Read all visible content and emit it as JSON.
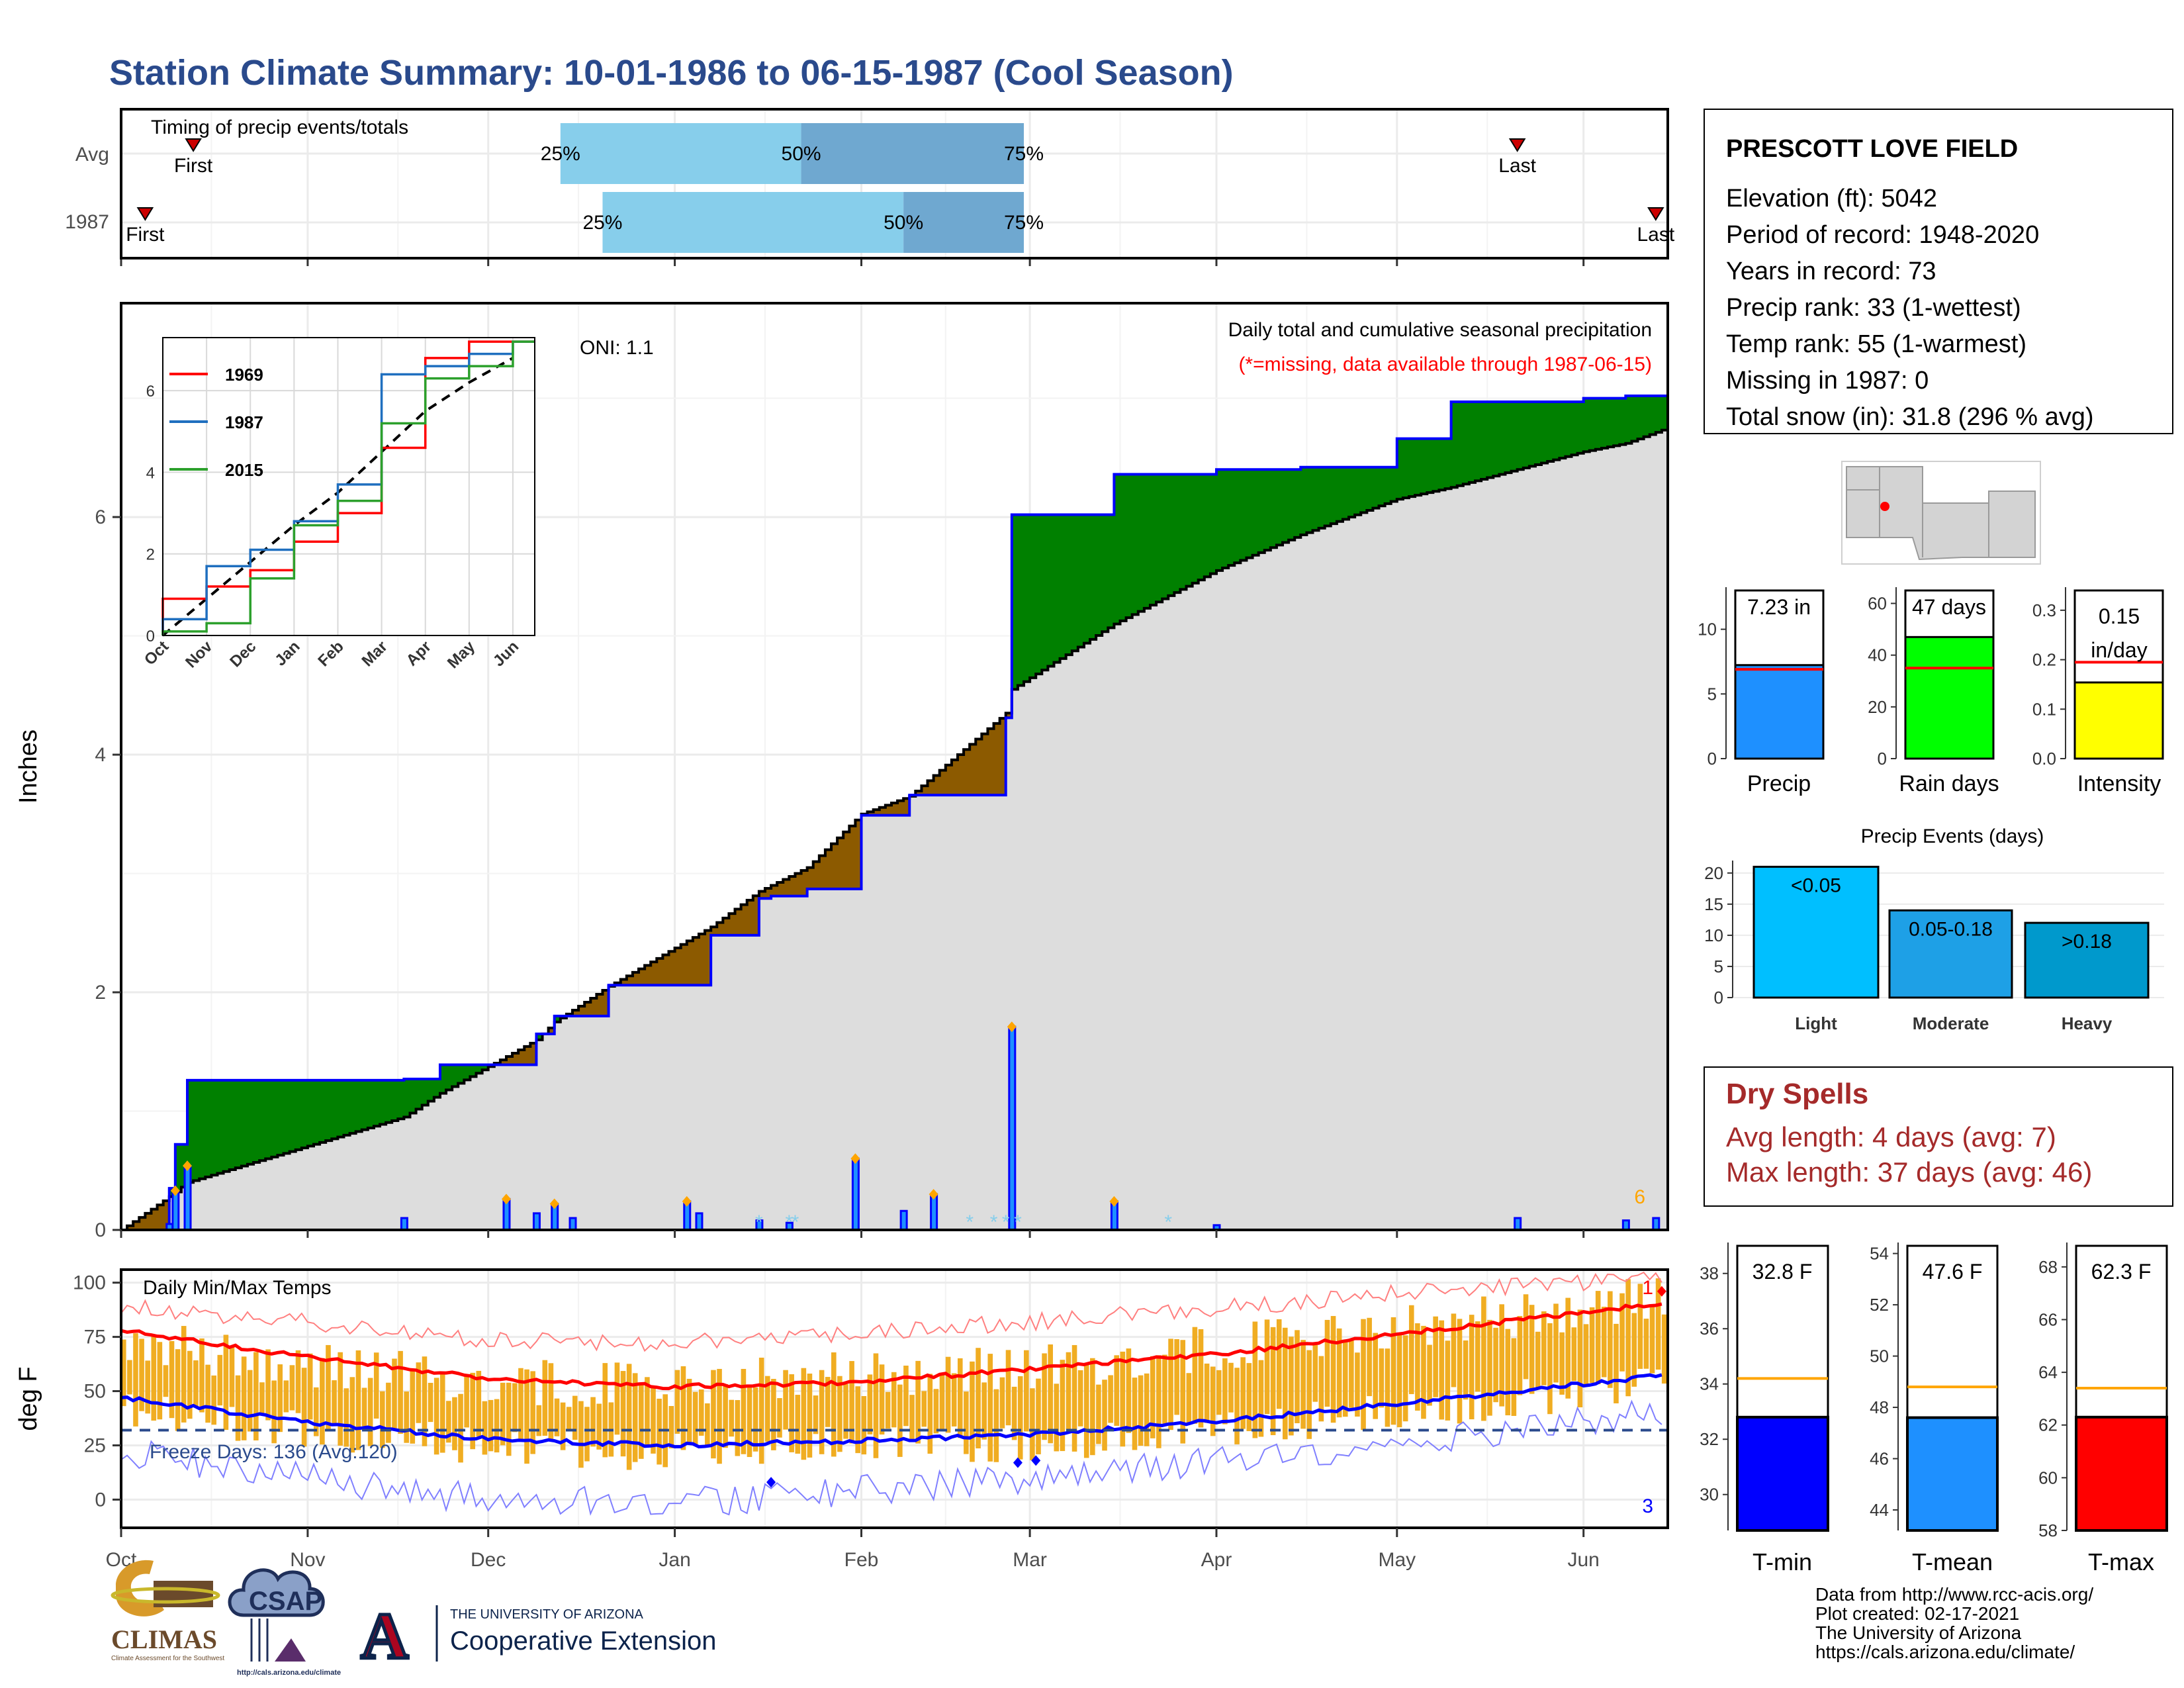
{
  "title": "Station Climate Summary: 10-01-1986 to 06-15-1987 (Cool Season)",
  "colors": {
    "title": "#2a4a8c",
    "green": "#008000",
    "brown": "#8c5a00",
    "gray": "#dddddd",
    "blue": "#0000ff",
    "lightblue": "#87ceeb",
    "midblue": "#6fa8d0",
    "orange": "#ffa500",
    "red": "#ff0000",
    "gold": "#f0ad22",
    "precip_bar": "#1e90ff",
    "raindays_bar": "#00ff00",
    "intensity_bar": "#ffff00",
    "light": "#00bfff",
    "moderate": "#1ea0e6",
    "heavy": "#0099cc",
    "tmin": "#0000ff",
    "tmean": "#1e90ff",
    "tmax": "#ff0000",
    "dry": "#a52a2a"
  },
  "timing_panel": {
    "label": "Timing of precip events/totals",
    "rows": [
      {
        "name": "Avg",
        "first_label": "First",
        "last_label": "Last",
        "first_date": "1986-10-13",
        "last_date": "1987-05-21",
        "p25_label": "25%",
        "p50_label": "50%",
        "p75_label": "75%",
        "p25_date": "1986-12-13",
        "p50_date": "1987-01-22",
        "p75_date": "1987-02-28"
      },
      {
        "name": "1987",
        "first_label": "First",
        "last_label": "Last",
        "first_date": "1986-10-05",
        "last_date": "1987-06-13",
        "p25_label": "25%",
        "p50_label": "50%",
        "p75_label": "75%",
        "p25_date": "1986-12-20",
        "p50_date": "1987-02-08",
        "p75_date": "1987-02-28"
      }
    ]
  },
  "precip_panel": {
    "y_label": "Inches",
    "caption": "Daily total and cumulative seasonal precipitation",
    "missing_note": "(*=missing, data available through 1987-06-15)",
    "oni": "ONI: 1.1",
    "corner_count": "6",
    "y_ticks": [
      "0",
      "2",
      "4",
      "6"
    ],
    "ylim": [
      0,
      7.8
    ]
  },
  "inset": {
    "legend": [
      "1969",
      "1987",
      "2015"
    ],
    "legend_colors": [
      "#ff0000",
      "#1f6fbf",
      "#2ca02c"
    ],
    "x_ticks": [
      "Oct",
      "Nov",
      "Dec",
      "Jan",
      "Feb",
      "Mar",
      "Apr",
      "May",
      "Jun"
    ],
    "y_ticks": [
      "0",
      "2",
      "4",
      "6"
    ]
  },
  "temp_panel": {
    "y_label": "deg F",
    "label": "Daily Min/Max Temps",
    "freeze": "Freeze Days: 136 (Avg:120)",
    "max_count": "1",
    "min_count": "3",
    "y_ticks": [
      "0",
      "25",
      "50",
      "75",
      "100"
    ]
  },
  "x_axis_months": [
    "Oct",
    "Nov",
    "Dec",
    "Jan",
    "Feb",
    "Mar",
    "Apr",
    "May",
    "Jun"
  ],
  "station": {
    "name": "PRESCOTT LOVE FIELD",
    "lines": [
      "Elevation (ft): 5042",
      "Period of record: 1948-2020",
      "Years in record: 73",
      "Precip rank: 33 (1-wettest)",
      "Temp rank: 55 (1-warmest)",
      "Missing in 1987: 0",
      "Total snow (in): 31.8 (296 % avg)"
    ]
  },
  "mini_bars": [
    {
      "label": "Precip",
      "value_label": "7.23 in",
      "value": 7.23,
      "avg": 6.9,
      "ymax": 13,
      "ticks": [
        "0",
        "5",
        "10"
      ],
      "tick_vals": [
        0,
        5,
        10
      ]
    },
    {
      "label": "Rain days",
      "value_label": "47 days",
      "value": 47,
      "avg": 35,
      "ymax": 65,
      "ticks": [
        "0",
        "20",
        "40",
        "60"
      ],
      "tick_vals": [
        0,
        20,
        40,
        60
      ]
    },
    {
      "label": "Intensity",
      "value_label_1": "0.15",
      "value_label_2": "in/day",
      "value": 0.154,
      "avg": 0.195,
      "ymax": 0.34,
      "ticks": [
        "0.0",
        "0.1",
        "0.2",
        "0.3"
      ],
      "tick_vals": [
        0,
        0.1,
        0.2,
        0.3
      ]
    }
  ],
  "events": {
    "title": "Precip Events (days)",
    "categories": [
      "Light",
      "Moderate",
      "Heavy"
    ],
    "labels": [
      "<0.05",
      "0.05-0.18",
      ">0.18"
    ],
    "values": [
      21,
      14,
      12
    ],
    "y_ticks": [
      "0",
      "5",
      "10",
      "15",
      "20"
    ]
  },
  "dry_spells": {
    "title": "Dry Spells",
    "avg": "Avg length: 4 days (avg: 7)",
    "max": "Max length: 37 days (avg: 46)"
  },
  "temp_bars": [
    {
      "label": "T-min",
      "value_label": "32.8 F",
      "value": 32.8,
      "avg": 34.2,
      "ymin": 28.7,
      "ymax": 39,
      "ticks": [
        "30",
        "32",
        "34",
        "36",
        "38"
      ],
      "tick_vals": [
        30,
        32,
        34,
        36,
        38
      ]
    },
    {
      "label": "T-mean",
      "value_label": "47.6 F",
      "value": 47.6,
      "avg": 48.8,
      "ymin": 43.2,
      "ymax": 54.3,
      "ticks": [
        "44",
        "46",
        "48",
        "50",
        "52",
        "54"
      ],
      "tick_vals": [
        44,
        46,
        48,
        50,
        52,
        54
      ]
    },
    {
      "label": "T-max",
      "value_label": "62.3 F",
      "value": 62.3,
      "avg": 63.4,
      "ymin": 58,
      "ymax": 68.8,
      "ticks": [
        "58",
        "60",
        "62",
        "64",
        "66",
        "68"
      ],
      "tick_vals": [
        58,
        60,
        62,
        64,
        66,
        68
      ]
    }
  ],
  "footer": {
    "lines": [
      "Data from http://www.rcc-acis.org/",
      "Plot created: 02-17-2021",
      "The University of Arizona",
      "https://cals.arizona.edu/climate/"
    ],
    "climas": "CLIMAS",
    "climas_sub": "Climate Assessment for the Southwest",
    "csap": "CSAP",
    "csap_url": "http://cals.arizona.edu/climate",
    "ua_small": "THE UNIVERSITY OF ARIZONA",
    "ua_big": "Cooperative Extension",
    "ua_letter": "A"
  },
  "chart_data": [
    {
      "type": "area",
      "name": "cumulative_precip",
      "x": [
        "1986-10-01",
        "1986-10-09",
        "1986-10-10",
        "1986-10-12",
        "1986-11-17",
        "1986-11-23",
        "1986-12-09",
        "1986-12-12",
        "1986-12-21",
        "1987-01-07",
        "1987-01-15",
        "1987-01-17",
        "1987-01-23",
        "1987-02-01",
        "1987-02-09",
        "1987-02-25",
        "1987-02-26",
        "1987-03-15",
        "1987-04-01",
        "1987-04-15",
        "1987-05-01",
        "1987-05-10",
        "1987-06-01",
        "1987-06-08",
        "1987-06-15"
      ],
      "cumulative": [
        0.0,
        0.35,
        0.72,
        1.26,
        1.27,
        1.39,
        1.65,
        1.8,
        2.06,
        2.48,
        2.79,
        2.81,
        2.87,
        3.49,
        3.66,
        4.31,
        6.02,
        6.36,
        6.4,
        6.42,
        6.66,
        6.97,
        7.0,
        7.02,
        7.23
      ],
      "avg_cumulative": [
        0.0,
        0.28,
        0.32,
        0.4,
        0.95,
        1.15,
        1.6,
        1.75,
        2.05,
        2.55,
        2.85,
        2.9,
        3.05,
        3.5,
        3.65,
        4.35,
        4.55,
        5.1,
        5.55,
        5.85,
        6.15,
        6.25,
        6.55,
        6.62,
        6.75
      ],
      "daily": {
        "dates": [
          "1986-10-09",
          "1986-10-10",
          "1986-10-12",
          "1986-11-17",
          "1986-12-04",
          "1986-12-09",
          "1986-12-12",
          "1986-12-15",
          "1987-01-03",
          "1987-01-05",
          "1987-01-15",
          "1987-01-20",
          "1987-01-31",
          "1987-02-08",
          "1987-02-13",
          "1987-02-26",
          "1987-03-15",
          "1987-04-01",
          "1987-05-21",
          "1987-06-08",
          "1987-06-13"
        ],
        "values": [
          0.05,
          0.33,
          0.54,
          0.1,
          0.26,
          0.14,
          0.22,
          0.1,
          0.24,
          0.14,
          0.08,
          0.06,
          0.6,
          0.16,
          0.3,
          1.71,
          0.24,
          0.04,
          0.1,
          0.08,
          0.1
        ]
      }
    },
    {
      "type": "line",
      "name": "inset_cumulative",
      "x": [
        "Oct",
        "Nov",
        "Dec",
        "Jan",
        "Feb",
        "Mar",
        "Apr",
        "May",
        "Jun"
      ],
      "series": [
        {
          "name": "1969",
          "values": [
            0.9,
            1.2,
            1.6,
            2.3,
            3.0,
            4.6,
            6.8,
            7.2,
            7.2
          ]
        },
        {
          "name": "1987",
          "values": [
            0.4,
            1.7,
            2.1,
            2.8,
            3.7,
            6.4,
            6.6,
            6.9,
            7.2
          ]
        },
        {
          "name": "2015",
          "values": [
            0.1,
            0.3,
            1.4,
            2.7,
            3.3,
            5.2,
            6.3,
            6.6,
            7.2
          ]
        }
      ]
    },
    {
      "type": "bar",
      "name": "daily_temps",
      "ylim": [
        -10,
        105
      ],
      "x_start": "1986-10-01",
      "x_end": "1987-06-15",
      "tmax_monthly": [
        74,
        62,
        55,
        52,
        58,
        60,
        70,
        78,
        88
      ],
      "tmin_monthly": [
        42,
        32,
        25,
        22,
        26,
        26,
        33,
        40,
        50
      ],
      "avg_max_monthly": [
        78,
        66,
        56,
        52,
        54,
        60,
        67,
        76,
        86
      ],
      "avg_min_monthly": [
        47,
        36,
        28,
        25,
        27,
        30,
        36,
        44,
        53
      ],
      "rec_max_monthly": [
        89,
        82,
        74,
        72,
        76,
        82,
        88,
        95,
        100
      ],
      "rec_min_monthly": [
        22,
        10,
        0,
        -2,
        4,
        10,
        18,
        26,
        36
      ],
      "freeze_line": 32
    }
  ]
}
